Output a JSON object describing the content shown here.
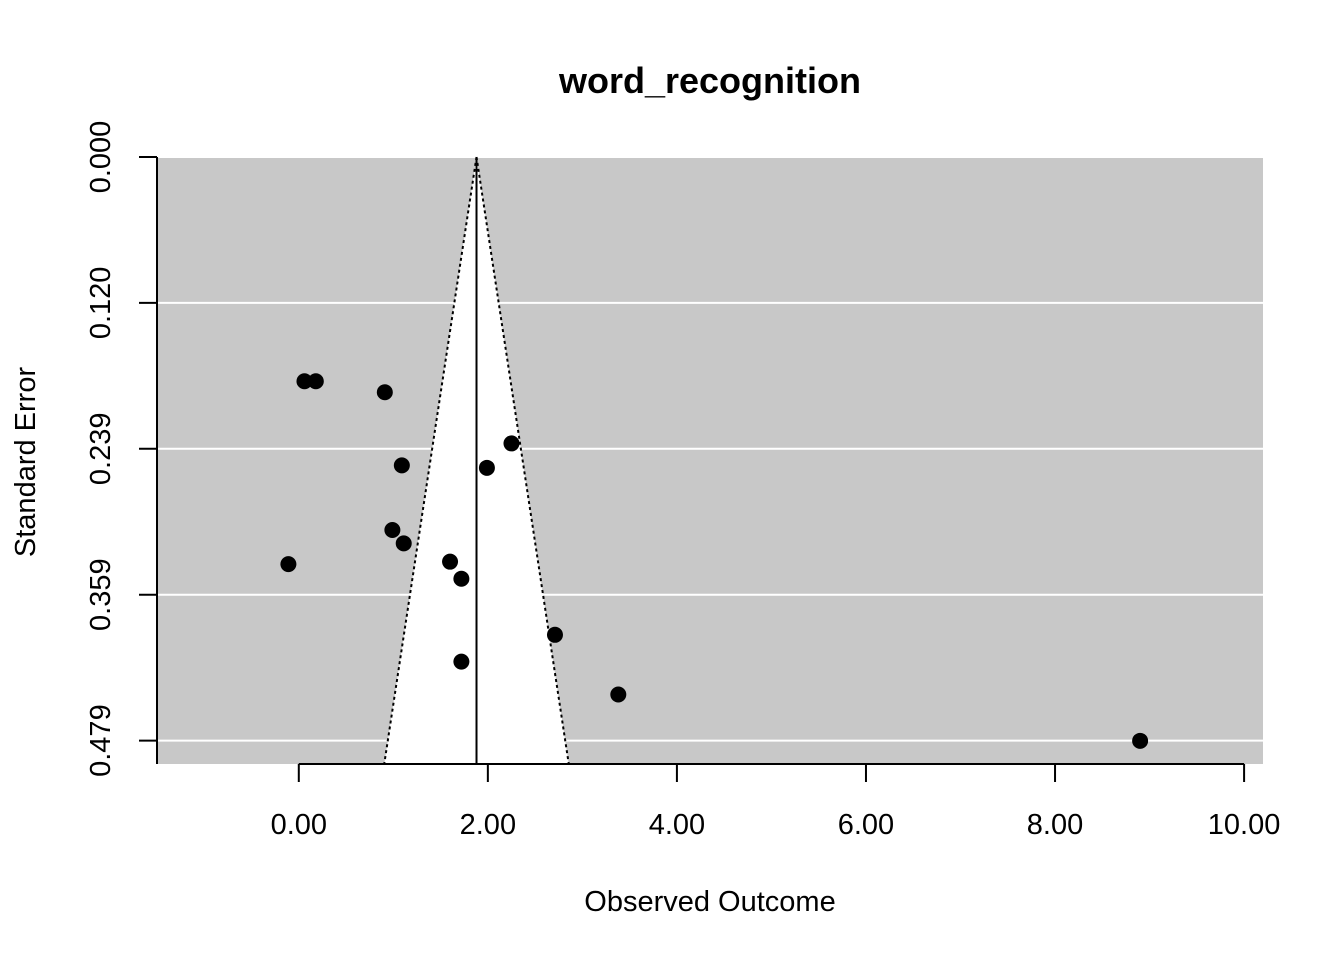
{
  "chart_data": {
    "type": "scatter",
    "subtype": "funnel",
    "title": "word_recognition",
    "xlabel": "Observed Outcome",
    "ylabel": "Standard Error",
    "xlim": [
      -1.5,
      10.2
    ],
    "ylim": [
      0,
      0.498
    ],
    "y_reversed": true,
    "x_ticks": [
      0,
      2,
      4,
      6,
      8,
      10
    ],
    "x_tick_labels": [
      "0.00",
      "2.00",
      "4.00",
      "6.00",
      "8.00",
      "10.00"
    ],
    "y_ticks": [
      0,
      0.1197,
      0.2394,
      0.3591,
      0.4788
    ],
    "y_tick_labels": [
      "0.000",
      "0.120",
      "0.239",
      "0.359",
      "0.479"
    ],
    "center": 1.88,
    "z_crit": 1.96,
    "grid": true,
    "background_color": "#c8c8c8",
    "funnel_fill": "#ffffff",
    "gridline_color": "#ffffff",
    "point_color": "#000000",
    "points": [
      {
        "x": 0.06,
        "y": 0.184
      },
      {
        "x": 0.18,
        "y": 0.184
      },
      {
        "x": 0.91,
        "y": 0.193
      },
      {
        "x": 2.25,
        "y": 0.235
      },
      {
        "x": 1.09,
        "y": 0.253
      },
      {
        "x": 1.99,
        "y": 0.255
      },
      {
        "x": 0.99,
        "y": 0.306
      },
      {
        "x": 1.11,
        "y": 0.317
      },
      {
        "x": -0.11,
        "y": 0.334
      },
      {
        "x": 1.6,
        "y": 0.332
      },
      {
        "x": 1.72,
        "y": 0.346
      },
      {
        "x": 2.71,
        "y": 0.392
      },
      {
        "x": 1.72,
        "y": 0.414
      },
      {
        "x": 3.38,
        "y": 0.441
      },
      {
        "x": 8.9,
        "y": 0.479
      }
    ]
  }
}
